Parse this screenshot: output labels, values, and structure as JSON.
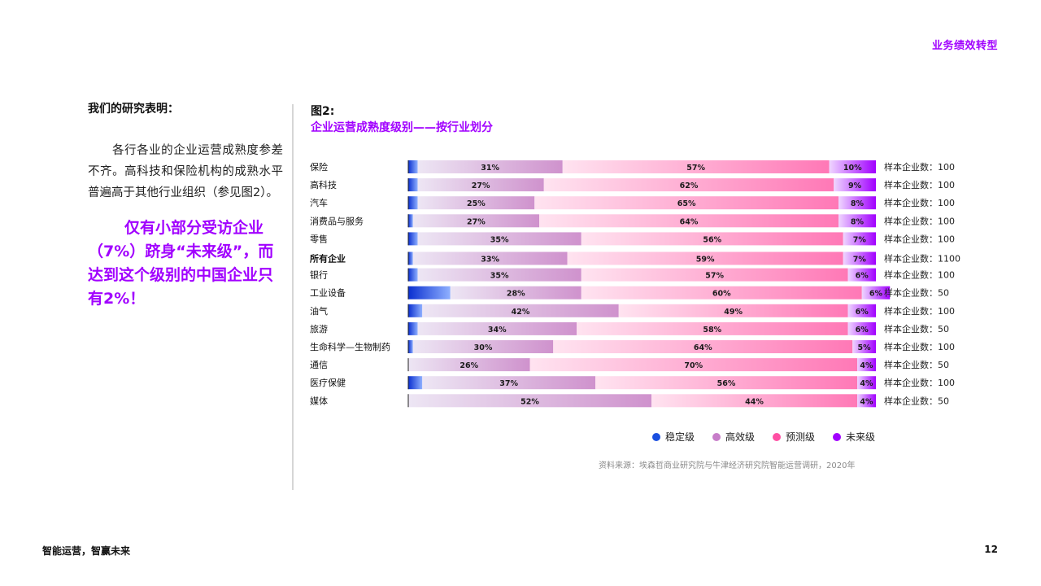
{
  "header": {
    "tag": "业务绩效转型"
  },
  "left": {
    "heading": "我们的研究表明：",
    "body": "各行各业的企业运营成熟度参差不齐。高科技和保险机构的成熟水平普遍高于其他行业组织（参见图2）。",
    "highlight": "仅有小部分受访企业（7%）跻身“未来级”，而达到这个级别的中国企业只有2%！"
  },
  "figure": {
    "label": "图2:",
    "title": "企业运营成熟度级别——按行业划分",
    "source": "资料来源：埃森哲商业研究院与牛津经济研究院智能运营调研，2020年"
  },
  "colors": {
    "stable": "#1a4fe0",
    "efficient": "#c77dc9",
    "predictive": "#ff4fa3",
    "future": "#a100ff"
  },
  "chart_data": {
    "type": "bar",
    "orientation": "horizontal",
    "stacked": true,
    "percent": true,
    "sample_prefix": "样本企业数：",
    "categories": [
      "保险",
      "高科技",
      "汽车",
      "消费品与服务",
      "零售",
      "所有企业",
      "银行",
      "工业设备",
      "油气",
      "旅游",
      "生命科学—生物制药",
      "通信",
      "医疗保健",
      "媒体"
    ],
    "emphasized_category": "所有企业",
    "sample_sizes": [
      100,
      100,
      100,
      100,
      100,
      1100,
      100,
      50,
      100,
      50,
      100,
      50,
      100,
      50
    ],
    "series": [
      {
        "name": "稳定级",
        "values": [
          2,
          2,
          2,
          1,
          2,
          1,
          2,
          9,
          3,
          2,
          1,
          0,
          3,
          0
        ]
      },
      {
        "name": "高效级",
        "values": [
          31,
          27,
          25,
          27,
          35,
          33,
          35,
          28,
          42,
          34,
          30,
          26,
          37,
          52
        ]
      },
      {
        "name": "预测级",
        "values": [
          57,
          62,
          65,
          64,
          56,
          59,
          57,
          60,
          49,
          58,
          64,
          70,
          56,
          44
        ]
      },
      {
        "name": "未来级",
        "values": [
          10,
          9,
          8,
          8,
          7,
          7,
          6,
          6,
          6,
          6,
          5,
          4,
          4,
          4
        ]
      }
    ]
  },
  "footer": {
    "left": "智能运营，智赢未来",
    "page": "12"
  }
}
